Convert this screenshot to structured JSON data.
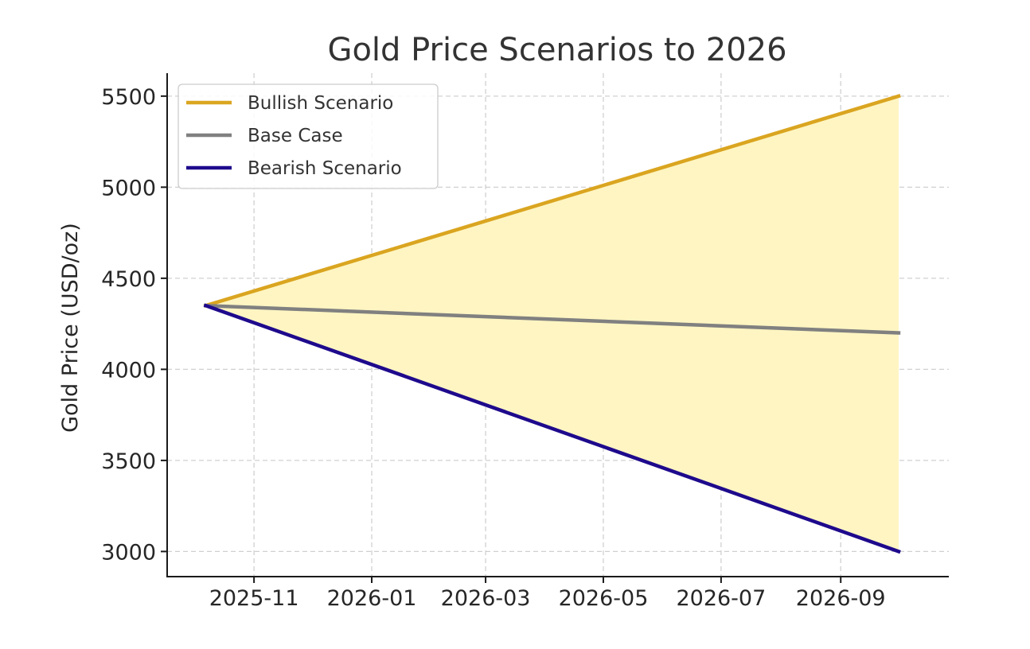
{
  "chart_data": {
    "type": "line",
    "title": "Gold Price Scenarios to 2026",
    "xlabel": "",
    "ylabel": "Gold Price (USD/oz)",
    "x": [
      "2025-10",
      "2026-10"
    ],
    "xlim": [
      "2025-09-17",
      "2026-10-27"
    ],
    "ylim": [
      2862,
      5626
    ],
    "grid": true,
    "legend_position": "top-left",
    "x_ticks": [
      {
        "date": "2025-11-01",
        "label": "2025-11"
      },
      {
        "date": "2026-01-01",
        "label": "2026-01"
      },
      {
        "date": "2026-03-01",
        "label": "2026-03"
      },
      {
        "date": "2026-05-01",
        "label": "2026-05"
      },
      {
        "date": "2026-07-01",
        "label": "2026-07"
      },
      {
        "date": "2026-09-01",
        "label": "2026-09"
      }
    ],
    "y_ticks": [
      3000,
      3500,
      4000,
      4500,
      5000,
      5500
    ],
    "series": [
      {
        "name": "Bullish Scenario",
        "color": "#DAA520",
        "values": [
          4350,
          5500
        ]
      },
      {
        "name": "Base Case",
        "color": "#808080",
        "values": [
          4350,
          4200
        ]
      },
      {
        "name": "Bearish Scenario",
        "color": "#1E0A8C",
        "values": [
          4350,
          3000
        ]
      }
    ],
    "fill_between": {
      "upper": "Bullish Scenario",
      "lower": "Bearish Scenario",
      "color": "#FFF5C2"
    },
    "start_date": "2025-10-07",
    "end_date": "2026-10-01"
  }
}
